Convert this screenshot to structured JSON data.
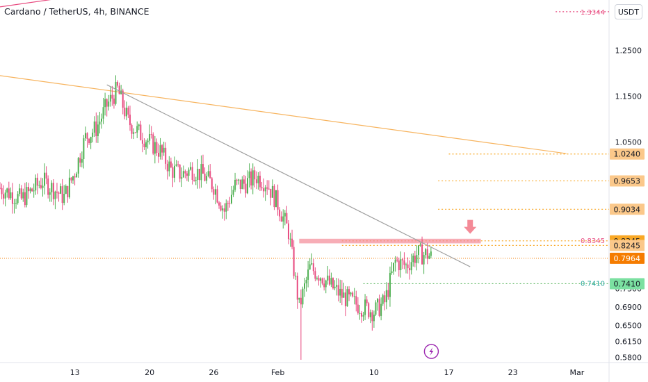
{
  "header": {
    "symbol_title": "Cardano / TetherUS, 4h, BINANCE",
    "currency_label": "USDT"
  },
  "colors": {
    "up": "#26a69a",
    "down": "#ef5350",
    "up_candle": "#4caf50",
    "down_candle": "#e84a7f",
    "trendline_gray": "#9e9e9e",
    "trendline_orange": "#f7b45f",
    "level_orange": "#f9a825",
    "level_fill": "#fbc88a",
    "current_price": "#f57c00",
    "support_green": "#66bb6a",
    "resistance_red": "#f06292"
  },
  "price_scale": {
    "ticks": [
      "1.2500",
      "1.1500",
      "1.0500",
      "0.9034",
      "0.7300",
      "0.6900",
      "0.6500",
      "0.6150",
      "0.5800"
    ],
    "ymin": 0.575,
    "ymax": 1.36
  },
  "time_axis": {
    "labels": [
      {
        "text": "13",
        "x": "2025-01-13"
      },
      {
        "text": "20",
        "x": "2025-01-20"
      },
      {
        "text": "26",
        "x": "2025-01-26"
      },
      {
        "text": "Feb",
        "x": "2025-02-01"
      },
      {
        "text": "10",
        "x": "2025-02-10"
      },
      {
        "text": "17",
        "x": "2025-02-17"
      },
      {
        "text": "23",
        "x": "2025-02-23"
      },
      {
        "text": "Mar",
        "x": "2025-03-01"
      }
    ]
  },
  "levels": [
    {
      "price": 1.3344,
      "label": "1.3344",
      "style": "text-red",
      "start_date": "2025-02-27"
    },
    {
      "price": 1.024,
      "label": "1.0240",
      "style": "badge-light",
      "start_date": "2025-02-17"
    },
    {
      "price": 0.9653,
      "label": "0.9653",
      "style": "badge-light",
      "start_date": "2025-02-16"
    },
    {
      "price": 0.9034,
      "label": "0.9034",
      "style": "badge-light",
      "start_date": "2025-02-16"
    },
    {
      "price": 0.8345,
      "label": "0.8345",
      "style": "badge-orange",
      "start_date": "2025-02-07"
    },
    {
      "price": 0.8245,
      "label": "0.8245",
      "style": "badge-light",
      "start_date": "2025-02-07"
    },
    {
      "price": 0.7964,
      "label": "0.7964",
      "style": "badge-current",
      "start_date": "2025-01-06"
    },
    {
      "price": 0.741,
      "label": "0.7410",
      "style": "badge-green",
      "start_date": "2025-02-09"
    }
  ],
  "inline_labels": [
    {
      "text": "0.8345",
      "price": 0.8345,
      "color": "#e84a7f"
    },
    {
      "text": "0.7410",
      "price": 0.741,
      "color": "#26a69a"
    }
  ],
  "drawings": {
    "orange_trendline": {
      "x1": "2025-01-06",
      "y1": 1.195,
      "x2": "2025-02-28",
      "y2": 1.025
    },
    "gray_trendline": {
      "x1": "2025-01-16",
      "y1": 1.175,
      "x2": "2025-02-19",
      "y2": 0.778
    },
    "red_zone": {
      "x1": "2025-02-03",
      "x2": "2025-02-20",
      "y1": 0.839,
      "y2": 0.829
    },
    "red_line_top": {
      "x1": "2025-01-06",
      "y1": 1.345,
      "x2": "2025-01-12",
      "y2": 1.365
    },
    "arrow": {
      "x": "2025-02-19",
      "y": 0.862
    }
  },
  "chart_data": {
    "type": "candlestick",
    "symbol": "ADA/USDT",
    "interval": "4h",
    "exchange": "BINANCE",
    "current_price": 0.7964,
    "x_range": [
      "2025-01-06",
      "2025-03-04"
    ],
    "y_range": [
      0.575,
      1.36
    ],
    "close_path": [
      [
        "2025-01-06",
        0.95
      ],
      [
        "2025-01-08",
        0.925
      ],
      [
        "2025-01-10",
        0.965
      ],
      [
        "2025-01-12",
        0.93
      ],
      [
        "2025-01-13",
        0.985
      ],
      [
        "2025-01-14",
        1.06
      ],
      [
        "2025-01-15",
        1.08
      ],
      [
        "2025-01-16",
        1.13
      ],
      [
        "2025-01-17",
        1.165
      ],
      [
        "2025-01-18",
        1.095
      ],
      [
        "2025-01-19",
        1.07
      ],
      [
        "2025-01-20",
        1.05
      ],
      [
        "2025-01-21",
        1.03
      ],
      [
        "2025-01-22",
        0.99
      ],
      [
        "2025-01-23",
        0.98
      ],
      [
        "2025-01-24",
        0.99
      ],
      [
        "2025-01-25",
        0.978
      ],
      [
        "2025-01-26",
        0.955
      ],
      [
        "2025-01-27",
        0.9
      ],
      [
        "2025-01-28",
        0.955
      ],
      [
        "2025-01-29",
        0.96
      ],
      [
        "2025-01-30",
        0.975
      ],
      [
        "2025-01-31",
        0.96
      ],
      [
        "2025-02-01",
        0.915
      ],
      [
        "2025-02-02",
        0.855
      ],
      [
        "2025-02-03",
        0.69
      ],
      [
        "2025-02-04",
        0.775
      ],
      [
        "2025-02-05",
        0.76
      ],
      [
        "2025-02-06",
        0.735
      ],
      [
        "2025-02-07",
        0.715
      ],
      [
        "2025-02-08",
        0.7
      ],
      [
        "2025-02-09",
        0.69
      ],
      [
        "2025-02-10",
        0.68
      ],
      [
        "2025-02-11",
        0.7
      ],
      [
        "2025-02-12",
        0.79
      ],
      [
        "2025-02-13",
        0.78
      ],
      [
        "2025-02-14",
        0.805
      ],
      [
        "2025-02-15",
        0.805
      ],
      [
        "2025-02-15T12",
        0.7964
      ]
    ],
    "key_extremes": {
      "high": 1.175,
      "low": 0.575
    },
    "levels": [
      1.3344,
      1.024,
      0.9653,
      0.9034,
      0.8345,
      0.8245,
      0.7964,
      0.741
    ]
  }
}
